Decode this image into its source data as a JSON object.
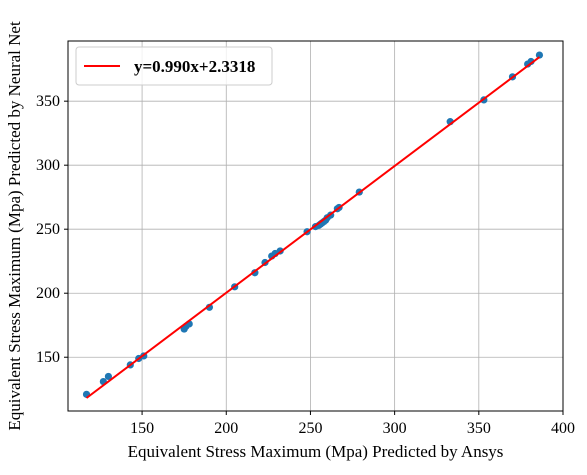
{
  "chart_data": {
    "type": "scatter",
    "xlabel": "Equivalent Stress Maximum (Mpa) Predicted by Ansys",
    "ylabel": "Equivalent Stress Maximum (Mpa) Predicted by Neural Net",
    "xlim": [
      106,
      400
    ],
    "ylim": [
      108,
      397
    ],
    "x_ticks": [
      150,
      200,
      250,
      300,
      350,
      400
    ],
    "y_ticks": [
      150,
      200,
      250,
      300,
      350
    ],
    "grid": true,
    "legend_position": "top-left",
    "fit_line": {
      "label": "y=0.990x+2.3318",
      "slope": 0.99,
      "intercept": 2.3318,
      "x_range": [
        117,
        386
      ],
      "color": "#ff0000"
    },
    "series": [
      {
        "color": "#1f77b4",
        "points": [
          [
            117,
            121
          ],
          [
            127,
            131
          ],
          [
            130,
            135
          ],
          [
            143,
            144
          ],
          [
            148,
            149
          ],
          [
            151,
            151
          ],
          [
            175,
            172
          ],
          [
            176,
            174
          ],
          [
            178,
            176
          ],
          [
            190,
            189
          ],
          [
            205,
            205
          ],
          [
            217,
            216
          ],
          [
            223,
            224
          ],
          [
            227,
            229
          ],
          [
            229,
            231
          ],
          [
            232,
            233
          ],
          [
            248,
            248
          ],
          [
            253,
            252
          ],
          [
            255,
            253
          ],
          [
            256,
            254
          ],
          [
            257,
            255
          ],
          [
            258,
            256
          ],
          [
            259,
            257
          ],
          [
            260,
            259
          ],
          [
            262,
            261
          ],
          [
            266,
            266
          ],
          [
            267,
            267
          ],
          [
            279,
            279
          ],
          [
            333,
            334
          ],
          [
            353,
            351
          ],
          [
            370,
            369
          ],
          [
            379,
            379
          ],
          [
            381,
            381
          ],
          [
            386,
            386
          ]
        ]
      }
    ]
  }
}
